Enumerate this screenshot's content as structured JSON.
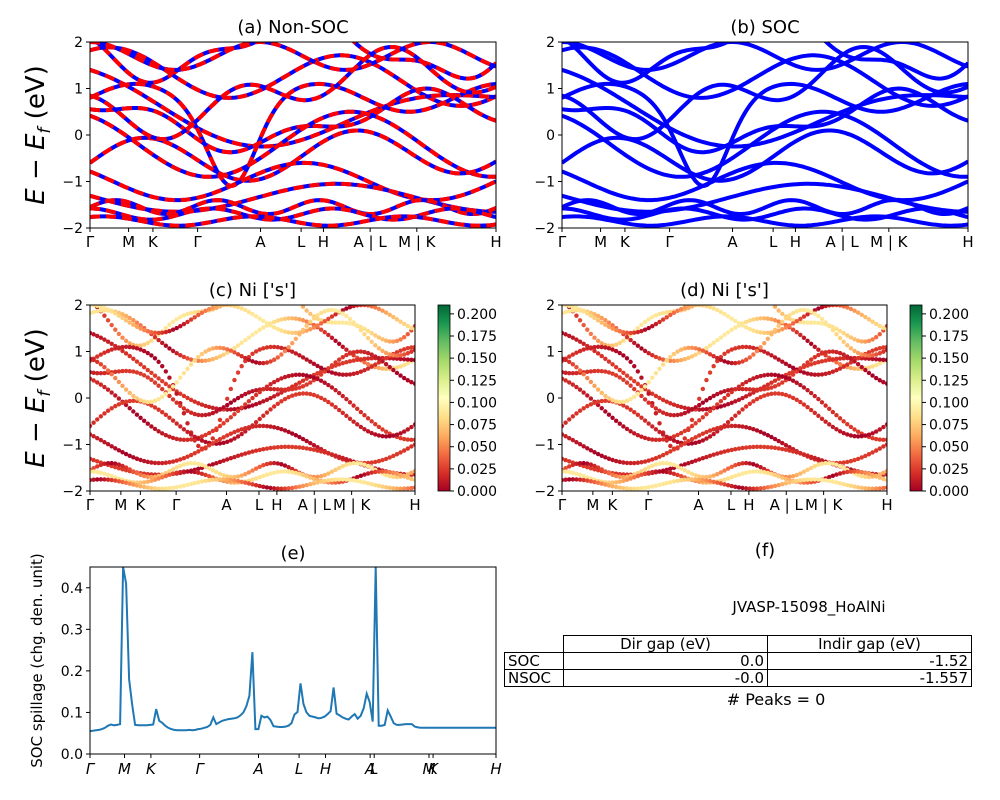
{
  "ylabel_e": "E − E",
  "ylabel_e_sub": "f",
  "ylabel_e_unit": " (eV)",
  "colors": {
    "blue": "#0000ff",
    "red": "#ff0000",
    "spillage": "#1f77b4"
  },
  "chart_data": [
    {
      "type": "line",
      "title": "(a) Non-SOC",
      "ylim": [
        -2,
        2
      ],
      "yticks": [
        "−2",
        "−1",
        "0",
        "1",
        "2"
      ],
      "xticks": [
        "Γ",
        "M",
        "K",
        "Γ",
        "A",
        "L",
        "H",
        "A | L",
        "M | K",
        "H"
      ],
      "series": [
        {
          "style": "blue solid + red dashed",
          "bands": "dense band structure"
        }
      ]
    },
    {
      "type": "line",
      "title": "(b) SOC",
      "ylim": [
        -2,
        2
      ],
      "yticks": [
        "−2",
        "−1",
        "0",
        "1",
        "2"
      ],
      "xticks": [
        "Γ",
        "M",
        "K",
        "Γ",
        "A",
        "L",
        "H",
        "A | L",
        "M | K",
        "H"
      ],
      "series": [
        {
          "style": "blue solid",
          "bands": "dense band structure"
        }
      ]
    },
    {
      "type": "scatter",
      "title": "(c)  Ni ['s']",
      "ylim": [
        -2,
        2
      ],
      "yticks": [
        "−2",
        "−1",
        "0",
        "1",
        "2"
      ],
      "xticks": [
        "Γ",
        "M",
        "K",
        "Γ",
        "A",
        "L",
        "H",
        "A | L",
        "M | K",
        "H"
      ],
      "colorbar": {
        "cmap": "RdYlGn",
        "range": [
          0,
          0.21
        ],
        "ticks": [
          "0.000",
          "0.025",
          "0.050",
          "0.075",
          "0.100",
          "0.125",
          "0.150",
          "0.175",
          "0.200"
        ]
      }
    },
    {
      "type": "scatter",
      "title": "(d) Ni ['s']",
      "ylim": [
        -2,
        2
      ],
      "yticks": [
        "−2",
        "−1",
        "0",
        "1",
        "2"
      ],
      "xticks": [
        "Γ",
        "M",
        "K",
        "Γ",
        "A",
        "L",
        "H",
        "A | L",
        "M | K",
        "H"
      ],
      "colorbar": {
        "cmap": "RdYlGn",
        "range": [
          0,
          0.21
        ],
        "ticks": [
          "0.000",
          "0.025",
          "0.050",
          "0.075",
          "0.100",
          "0.125",
          "0.150",
          "0.175",
          "0.200"
        ]
      }
    },
    {
      "type": "line",
      "title": "(e)",
      "ylabel": "SOC spillage (chg. den. unit)",
      "ylim": [
        0,
        0.45
      ],
      "yticks": [
        "0.0",
        "0.1",
        "0.2",
        "0.3",
        "0.4"
      ],
      "xticks": [
        "Γ",
        "M",
        "K",
        "Γ",
        "A",
        "L",
        "H",
        "A",
        "L",
        "M",
        "K",
        "H"
      ],
      "x": [
        0,
        3,
        6,
        9,
        12,
        15,
        18,
        21,
        24,
        27,
        30,
        33,
        36,
        39,
        42,
        45,
        48,
        51,
        54,
        57,
        60,
        63,
        66,
        69,
        72,
        75,
        78,
        81,
        84,
        87,
        90,
        93,
        96,
        99,
        102,
        105,
        108,
        111,
        114,
        117,
        120,
        123,
        126,
        129,
        132,
        135,
        138,
        141,
        144,
        147,
        150,
        153,
        156,
        159,
        162,
        165,
        168,
        171,
        174,
        177,
        180,
        183,
        186,
        189,
        192,
        195,
        198,
        201,
        204,
        207,
        210,
        213,
        216,
        219,
        222,
        225,
        228,
        231,
        234,
        237,
        240,
        243,
        246,
        249,
        252,
        255,
        258,
        261,
        264,
        267,
        270,
        273,
        276,
        279,
        282,
        285,
        288,
        291,
        294,
        297,
        300,
        303,
        306,
        309,
        312,
        315,
        318,
        321,
        324,
        327,
        330,
        333,
        336,
        339,
        342,
        345,
        348,
        351,
        354,
        357,
        360,
        363,
        366,
        369,
        372,
        375,
        378,
        381,
        384,
        387,
        390,
        393,
        396,
        399,
        402,
        405
      ],
      "y": [
        0.055,
        0.056,
        0.057,
        0.058,
        0.06,
        0.063,
        0.068,
        0.071,
        0.069,
        0.07,
        0.072,
        0.45,
        0.41,
        0.18,
        0.12,
        0.07,
        0.069,
        0.069,
        0.069,
        0.069,
        0.07,
        0.071,
        0.108,
        0.08,
        0.075,
        0.068,
        0.063,
        0.06,
        0.058,
        0.057,
        0.057,
        0.057,
        0.057,
        0.058,
        0.057,
        0.058,
        0.06,
        0.061,
        0.063,
        0.065,
        0.07,
        0.088,
        0.072,
        0.076,
        0.08,
        0.082,
        0.084,
        0.085,
        0.086,
        0.088,
        0.093,
        0.1,
        0.115,
        0.14,
        0.245,
        0.06,
        0.06,
        0.092,
        0.088,
        0.09,
        0.082,
        0.067,
        0.066,
        0.065,
        0.065,
        0.066,
        0.068,
        0.074,
        0.095,
        0.101,
        0.17,
        0.12,
        0.1,
        0.092,
        0.09,
        0.088,
        0.086,
        0.087,
        0.09,
        0.096,
        0.103,
        0.16,
        0.097,
        0.093,
        0.088,
        0.085,
        0.083,
        0.09,
        0.096,
        0.085,
        0.092,
        0.11,
        0.145,
        0.125,
        0.078,
        0.45,
        0.068,
        0.068,
        0.07,
        0.105,
        0.09,
        0.074,
        0.07,
        0.07,
        0.071,
        0.072,
        0.072,
        0.072,
        0.066,
        0.064,
        0.063,
        0.063,
        0.063,
        0.063,
        0.063,
        0.063,
        0.063,
        0.063,
        0.063,
        0.063,
        0.063,
        0.063,
        0.063,
        0.063,
        0.063,
        0.063,
        0.063,
        0.063,
        0.063,
        0.063,
        0.063,
        0.063,
        0.063,
        0.063,
        0.063,
        0.063
      ]
    }
  ],
  "panel_f": {
    "title": "(f)",
    "name": "JVASP-15098_HoAlNi",
    "table": {
      "headers": [
        "Dir gap (eV)",
        "Indir gap (eV)"
      ],
      "rows": [
        [
          "SOC",
          "0.0",
          "-1.52"
        ],
        [
          "NSOC",
          "-0.0",
          "-1.557"
        ]
      ]
    },
    "peaks": "# Peaks = 0"
  }
}
